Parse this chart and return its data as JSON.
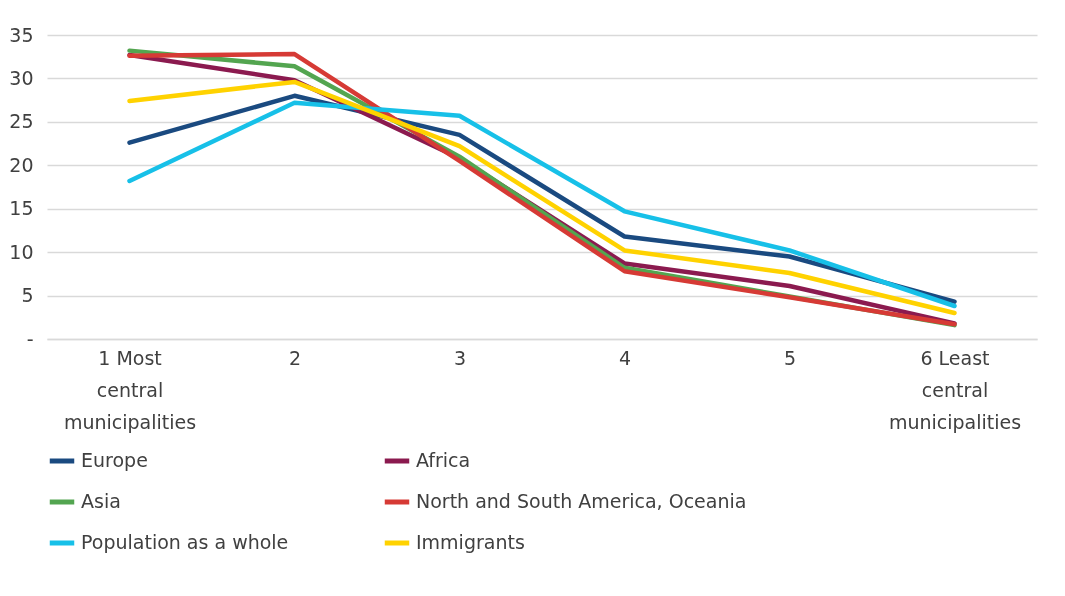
{
  "chart_data": {
    "type": "line",
    "categories": [
      "1 Most central municipalities",
      "2",
      "3",
      "4",
      "5",
      "6 Least central municipalities"
    ],
    "series": [
      {
        "name": "Europe",
        "color": "#1a4a80",
        "values": [
          22.6,
          28.0,
          23.5,
          11.8,
          9.5,
          4.3
        ]
      },
      {
        "name": "Africa",
        "color": "#8b1a4f",
        "values": [
          32.7,
          29.8,
          20.8,
          8.7,
          6.1,
          1.8
        ]
      },
      {
        "name": "Asia",
        "color": "#53a550",
        "values": [
          33.2,
          31.4,
          21.0,
          8.2,
          4.9,
          1.6
        ]
      },
      {
        "name": "North and South America, Oceania",
        "color": "#d63a35",
        "values": [
          32.6,
          32.8,
          20.5,
          7.8,
          4.8,
          1.7
        ]
      },
      {
        "name": "Population as a whole",
        "color": "#17c0e8",
        "values": [
          18.2,
          27.2,
          25.7,
          14.7,
          10.2,
          3.8
        ]
      },
      {
        "name": "Immigrants",
        "color": "#ffd200",
        "values": [
          27.4,
          29.6,
          22.2,
          10.2,
          7.6,
          3.0
        ]
      }
    ],
    "ylim": [
      0,
      35
    ],
    "yticks": [
      {
        "value": 0,
        "label": "-"
      },
      5,
      10,
      15,
      20,
      25,
      30,
      35
    ],
    "grid": "y",
    "legend": "bottom",
    "marker": "none",
    "line_style": "solid"
  }
}
